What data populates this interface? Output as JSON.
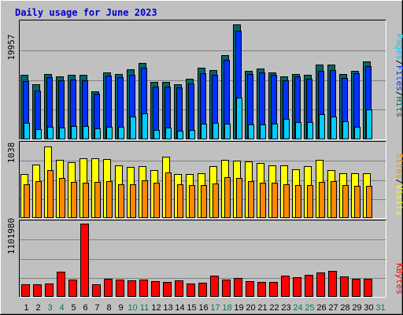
{
  "title": "Daily usage for June 2023",
  "colors": {
    "background": "#c0c0c0",
    "grid": "#808080",
    "hits": "#006666",
    "files": "#0033ff",
    "pages": "#00ccff",
    "visits": "#ffff00",
    "sites": "#ff8800",
    "kbytes": "#ff0000",
    "title": "#0000cc",
    "weekday_label": "#000000",
    "weekend_label": "#008040"
  },
  "legend": {
    "top": [
      {
        "text": "Pages",
        "color": "#00ccff"
      },
      {
        "text": "/",
        "color": "#000000"
      },
      {
        "text": "Files",
        "color": "#0033ff"
      },
      {
        "text": "/",
        "color": "#000000"
      },
      {
        "text": "Hits",
        "color": "#006666"
      }
    ],
    "middle": [
      {
        "text": "Sites",
        "color": "#ff8800"
      },
      {
        "text": "/",
        "color": "#000000"
      },
      {
        "text": "Visits",
        "color": "#ffff00"
      }
    ],
    "bottom": [
      {
        "text": "KBytes",
        "color": "#ff0000"
      }
    ]
  },
  "chart_data": [
    {
      "type": "bar",
      "panel": "hits-files-pages",
      "y_max_label": "19957",
      "ylim": [
        0,
        19957
      ],
      "categories": [
        "1",
        "2",
        "3",
        "4",
        "5",
        "6",
        "7",
        "8",
        "9",
        "10",
        "11",
        "12",
        "13",
        "14",
        "15",
        "16",
        "17",
        "18",
        "19",
        "20",
        "21",
        "22",
        "23",
        "24",
        "25",
        "26",
        "27",
        "28",
        "29",
        "30",
        "31"
      ],
      "weekend_days": [
        "3",
        "4",
        "10",
        "11",
        "17",
        "18",
        "24",
        "25",
        "31"
      ],
      "series": [
        {
          "name": "Hits",
          "values": [
            11070,
            9510,
            11330,
            10810,
            11070,
            11070,
            8330,
            11590,
            11330,
            12110,
            13150,
            9900,
            9900,
            9510,
            10420,
            12370,
            11980,
            14590,
            19830,
            11850,
            12240,
            11590,
            10810,
            11330,
            11070,
            12890,
            12890,
            11330,
            11850,
            13410,
            0
          ]
        },
        {
          "name": "Files",
          "values": [
            10030,
            8460,
            10680,
            10160,
            10290,
            10160,
            7810,
            10950,
            10680,
            11200,
            12370,
            9120,
            9120,
            8990,
            9640,
            11460,
            11200,
            13670,
            18780,
            11330,
            11590,
            11070,
            10160,
            10810,
            10420,
            11850,
            11980,
            10550,
            11460,
            12630,
            0
          ]
        },
        {
          "name": "Pages",
          "values": [
            2860,
            1820,
            2210,
            2080,
            2340,
            2340,
            1950,
            2210,
            2210,
            3900,
            4420,
            1690,
            2080,
            1430,
            1690,
            2730,
            2860,
            2730,
            7150,
            2600,
            2600,
            2730,
            3510,
            2990,
            2990,
            4290,
            3900,
            3120,
            2210,
            5200,
            0
          ]
        }
      ]
    },
    {
      "type": "bar",
      "panel": "visits-sites",
      "y_max_label": "1038",
      "ylim": [
        0,
        1038
      ],
      "categories": [
        "1",
        "2",
        "3",
        "4",
        "5",
        "6",
        "7",
        "8",
        "9",
        "10",
        "11",
        "12",
        "13",
        "14",
        "15",
        "16",
        "17",
        "18",
        "19",
        "20",
        "21",
        "22",
        "23",
        "24",
        "25",
        "26",
        "27",
        "28",
        "29",
        "30",
        "31"
      ],
      "series": [
        {
          "name": "Visits",
          "values": [
            630,
            760,
            1020,
            830,
            790,
            850,
            850,
            840,
            750,
            730,
            740,
            680,
            870,
            620,
            620,
            640,
            740,
            830,
            820,
            800,
            780,
            750,
            750,
            690,
            740,
            830,
            680,
            640,
            640,
            640,
            0
          ]
        },
        {
          "name": "Sites",
          "values": [
            480,
            530,
            680,
            570,
            510,
            500,
            510,
            530,
            480,
            480,
            540,
            500,
            650,
            480,
            470,
            470,
            490,
            580,
            570,
            520,
            500,
            500,
            480,
            470,
            470,
            510,
            530,
            470,
            460,
            460,
            0
          ]
        }
      ]
    },
    {
      "type": "bar",
      "panel": "kbytes",
      "y_max_label": "1101980",
      "ylim": [
        0,
        1101980
      ],
      "categories": [
        "1",
        "2",
        "3",
        "4",
        "5",
        "6",
        "7",
        "8",
        "9",
        "10",
        "11",
        "12",
        "13",
        "14",
        "15",
        "16",
        "17",
        "18",
        "19",
        "20",
        "21",
        "22",
        "23",
        "24",
        "25",
        "26",
        "27",
        "28",
        "29",
        "30",
        "31"
      ],
      "series": [
        {
          "name": "KBytes",
          "values": [
            190000,
            190000,
            200000,
            380000,
            260000,
            1101980,
            190000,
            270000,
            260000,
            250000,
            260000,
            240000,
            220000,
            250000,
            200000,
            210000,
            320000,
            260000,
            290000,
            240000,
            230000,
            220000,
            320000,
            300000,
            330000,
            370000,
            390000,
            310000,
            270000,
            270000,
            0
          ]
        }
      ]
    }
  ]
}
